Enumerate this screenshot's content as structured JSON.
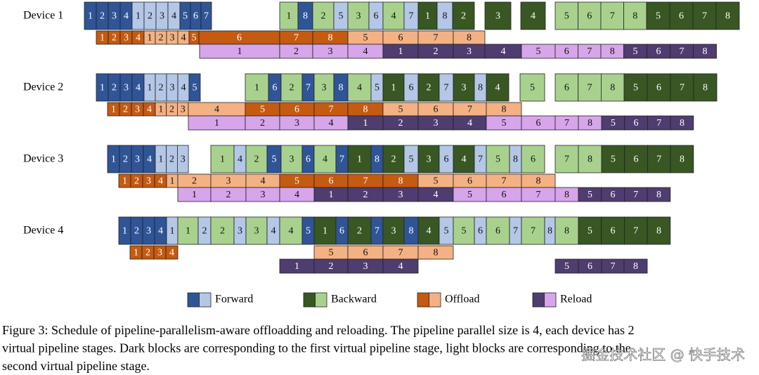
{
  "devices": [
    {
      "name": "Device 1",
      "compute": [
        1,
        2,
        3,
        4,
        1,
        2,
        3,
        4,
        5,
        6,
        7,
        1,
        8,
        2,
        5,
        3,
        6,
        4,
        7,
        1,
        8,
        2,
        3,
        4,
        5,
        6,
        7,
        8,
        5,
        6,
        7,
        8
      ],
      "offload": [
        1,
        2,
        3,
        4,
        1,
        2,
        3,
        4,
        5,
        6,
        7,
        8,
        5,
        6,
        7,
        8
      ],
      "reload": [
        1,
        2,
        3,
        4,
        1,
        2,
        3,
        4,
        5,
        6,
        7,
        8,
        5,
        6,
        7,
        8
      ]
    },
    {
      "name": "Device 2",
      "compute": [
        1,
        2,
        3,
        4,
        1,
        2,
        3,
        4,
        5,
        1,
        6,
        2,
        7,
        3,
        8,
        4,
        5,
        1,
        6,
        2,
        7,
        3,
        8,
        4,
        5,
        6,
        7,
        8,
        5,
        6,
        7,
        8
      ],
      "offload": [
        1,
        2,
        3,
        4,
        1,
        2,
        3,
        4,
        5,
        6,
        7,
        8,
        5,
        6,
        7,
        8
      ],
      "reload": [
        1,
        2,
        3,
        4,
        1,
        2,
        3,
        4,
        5,
        6,
        7,
        8,
        5,
        6,
        7,
        8
      ]
    },
    {
      "name": "Device 3",
      "compute": [
        1,
        2,
        3,
        4,
        1,
        2,
        3,
        1,
        4,
        2,
        5,
        3,
        6,
        4,
        7,
        1,
        8,
        2,
        5,
        3,
        6,
        4,
        7,
        5,
        8,
        6,
        7,
        8,
        5,
        6,
        7,
        8
      ],
      "offload": [
        1,
        2,
        3,
        4,
        1,
        2,
        3,
        4,
        5,
        6,
        7,
        8,
        5,
        6,
        7,
        8
      ],
      "reload": [
        1,
        2,
        3,
        4,
        1,
        2,
        3,
        4,
        5,
        6,
        7,
        8,
        5,
        6,
        7,
        8
      ]
    },
    {
      "name": "Device 4",
      "compute": [
        1,
        2,
        3,
        4,
        1,
        1,
        2,
        2,
        3,
        3,
        4,
        4,
        5,
        1,
        6,
        2,
        7,
        3,
        8,
        4,
        5,
        5,
        6,
        6,
        7,
        7,
        8,
        8,
        5,
        6,
        7,
        8
      ],
      "offload": [
        1,
        2,
        3,
        4,
        5,
        6,
        7,
        8
      ],
      "reload": [
        1,
        2,
        3,
        4,
        5,
        6,
        7,
        8
      ]
    }
  ],
  "legend": [
    "Forward",
    "Backward",
    "Offload",
    "Reload"
  ],
  "caption": [
    "Figure 3: Schedule of pipeline-parallelism-aware offloadding and reloading. The pipeline parallel size is 4, each device has 2",
    "virtual pipeline stages. Dark blocks are corresponding to the first virtual pipeline stage, light blocks are corresponding to the",
    "second virtual pipeline stage."
  ],
  "watermark": "掘金技术社区 @ 快手技术"
}
